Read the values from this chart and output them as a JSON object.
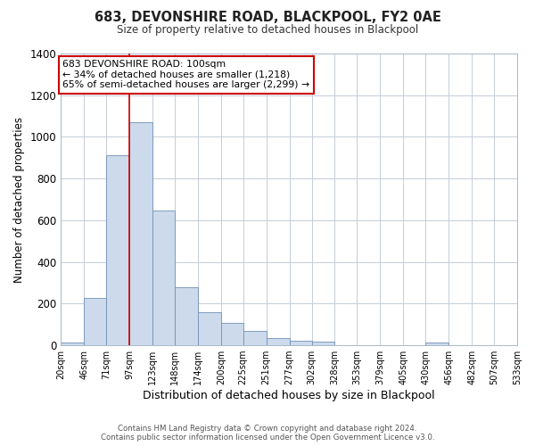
{
  "title": "683, DEVONSHIRE ROAD, BLACKPOOL, FY2 0AE",
  "subtitle": "Size of property relative to detached houses in Blackpool",
  "xlabel": "Distribution of detached houses by size in Blackpool",
  "ylabel": "Number of detached properties",
  "bar_color": "#ccdaeb",
  "bar_edge_color": "#7090b8",
  "background_color": "#ffffff",
  "grid_color": "#c5cdd8",
  "bins": [
    20,
    46,
    71,
    97,
    123,
    148,
    174,
    200,
    225,
    251,
    277,
    302,
    328,
    353,
    379,
    405,
    430,
    456,
    482,
    507,
    533
  ],
  "bin_labels": [
    "20sqm",
    "46sqm",
    "71sqm",
    "97sqm",
    "123sqm",
    "148sqm",
    "174sqm",
    "200sqm",
    "225sqm",
    "251sqm",
    "277sqm",
    "302sqm",
    "328sqm",
    "353sqm",
    "379sqm",
    "405sqm",
    "430sqm",
    "456sqm",
    "482sqm",
    "507sqm",
    "533sqm"
  ],
  "counts": [
    15,
    228,
    912,
    1070,
    648,
    278,
    160,
    108,
    68,
    35,
    20,
    18,
    0,
    0,
    0,
    0,
    12,
    0,
    0,
    0
  ],
  "vline_x": 97,
  "vline_color": "#cc0000",
  "annotation_line1": "683 DEVONSHIRE ROAD: 100sqm",
  "annotation_line2": "← 34% of detached houses are smaller (1,218)",
  "annotation_line3": "65% of semi-detached houses are larger (2,299) →",
  "ylim": [
    0,
    1400
  ],
  "yticks": [
    0,
    200,
    400,
    600,
    800,
    1000,
    1200,
    1400
  ],
  "footer_line1": "Contains HM Land Registry data © Crown copyright and database right 2024.",
  "footer_line2": "Contains public sector information licensed under the Open Government Licence v3.0."
}
